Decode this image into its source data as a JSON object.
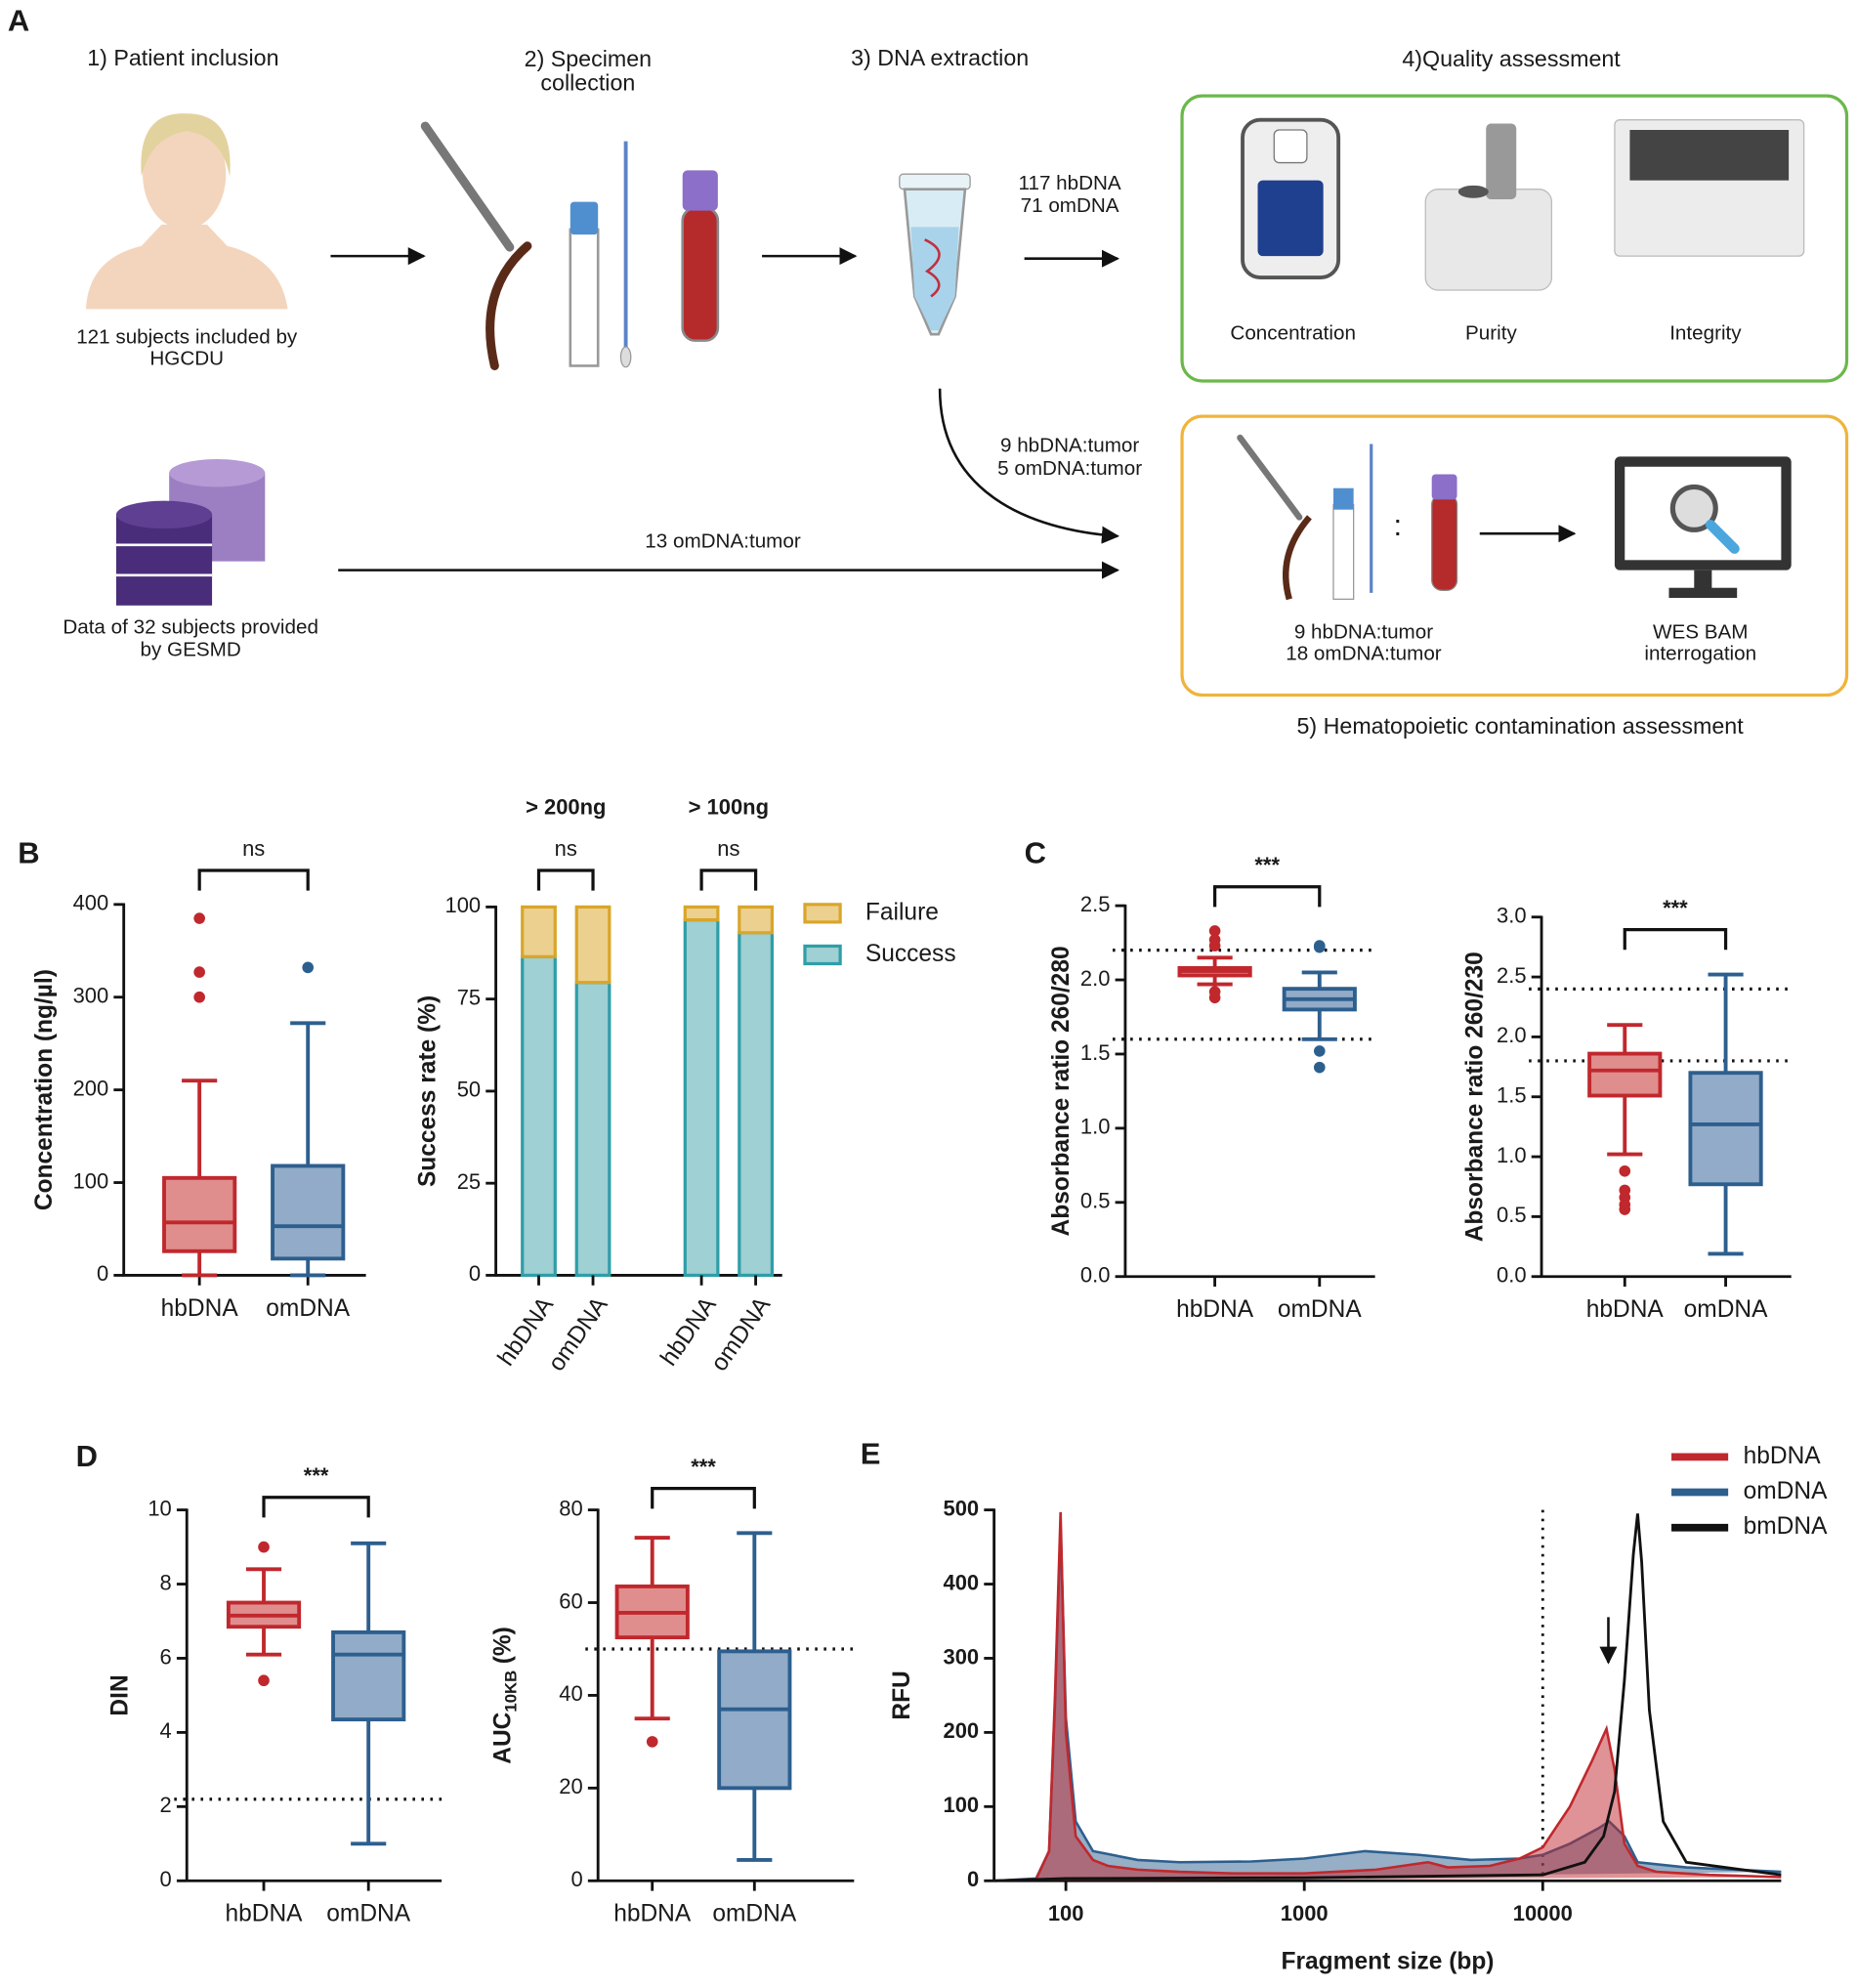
{
  "panel_a": {
    "label": "A",
    "step1": "1) Patient inclusion",
    "step2": [
      "2) Specimen",
      "collection"
    ],
    "step3": "3) DNA extraction",
    "step4": "4)Quality assessment",
    "step5": "5) Hematopoietic contamination assessment",
    "inclusion_note": [
      "121 subjects included by",
      "HGCDU"
    ],
    "gesmd_note": [
      "Data of 32 subjects provided",
      "by GESMD"
    ],
    "extraction_counts": [
      "117 hbDNA",
      "71 omDNA"
    ],
    "tumor_counts": [
      "9 hbDNA:tumor",
      "5 omDNA:tumor"
    ],
    "gesmd_count": "13 omDNA:tumor",
    "quality_items": [
      "Concentration",
      "Purity",
      "Integrity"
    ],
    "contamination_counts": [
      "9 hbDNA:tumor",
      "18 omDNA:tumor"
    ],
    "pair_separator": ":",
    "wes": [
      "WES BAM",
      "interrogation"
    ]
  },
  "chart_data": [
    {
      "type": "box",
      "panel": "B",
      "y_label": "Concentration (ng/µl)",
      "categories": [
        "hbDNA",
        "omDNA"
      ],
      "ylim": [
        0,
        400
      ],
      "yticks": [
        0,
        100,
        200,
        300,
        400
      ],
      "significance": "ns",
      "boxes": [
        {
          "color": "#c0282d",
          "fill": "#e08d8d",
          "low": 0,
          "q1": 26,
          "median": 57,
          "q3": 105,
          "high": 210,
          "outliers": [
            300,
            327,
            385
          ]
        },
        {
          "color": "#2d5f8e",
          "fill": "#91abc8",
          "low": 0,
          "q1": 18,
          "median": 53,
          "q3": 118,
          "high": 272,
          "outliers": [
            332
          ]
        }
      ]
    },
    {
      "type": "stacked_bar",
      "y_label": "Success rate (%)",
      "categories": [
        "hbDNA",
        "omDNA",
        "hbDNA",
        "omDNA"
      ],
      "groups": [
        {
          "label": "> 200ng",
          "significance": "ns"
        },
        {
          "label": "> 100ng",
          "significance": "ns"
        }
      ],
      "ylim": [
        0,
        100
      ],
      "yticks": [
        0,
        25,
        50,
        75,
        100
      ],
      "series": [
        {
          "name": "Failure",
          "color": "#d9a62a",
          "fill": "#ecd090",
          "values": [
            13.5,
            20.5,
            3.5,
            7
          ]
        },
        {
          "name": "Success",
          "color": "#2f9ea8",
          "fill": "#9fd0d3",
          "values": [
            86.5,
            79.5,
            96.5,
            93
          ]
        }
      ]
    },
    {
      "type": "box",
      "panel": "C",
      "y_label": "Absorbance ratio 260/280",
      "categories": [
        "hbDNA",
        "omDNA"
      ],
      "ylim": [
        0,
        2.5
      ],
      "yticks": [
        {
          "value": 0,
          "label": "0.0"
        },
        0.5,
        {
          "value": 1,
          "label": "1.0"
        },
        1.5,
        {
          "value": 2,
          "label": "2.0"
        },
        2.5
      ],
      "significance": "***",
      "ref_lines": [
        2.2,
        1.6
      ],
      "boxes": [
        {
          "color": "#c0282d",
          "fill": "#e08d8d",
          "low": 1.97,
          "q1": 2.03,
          "median": 2.06,
          "q3": 2.08,
          "high": 2.15,
          "outliers": [
            2.33,
            2.27,
            2.23,
            1.92,
            1.88
          ]
        },
        {
          "color": "#2d5f8e",
          "fill": "#91abc8",
          "low": 1.6,
          "q1": 1.8,
          "median": 1.87,
          "q3": 1.94,
          "high": 2.05,
          "outliers": [
            2.23,
            2.22,
            1.52,
            1.41
          ]
        }
      ]
    },
    {
      "type": "box",
      "y_label": "Absorbance ratio 260/230",
      "categories": [
        "hbDNA",
        "omDNA"
      ],
      "ylim": [
        0,
        3
      ],
      "yticks": [
        {
          "value": 0,
          "label": "0.0"
        },
        0.5,
        {
          "value": 1,
          "label": "1.0"
        },
        1.5,
        {
          "value": 2,
          "label": "2.0"
        },
        2.5,
        {
          "value": 3,
          "label": "3.0"
        }
      ],
      "significance": "***",
      "ref_lines": [
        2.4,
        1.8
      ],
      "boxes": [
        {
          "color": "#c0282d",
          "fill": "#e08d8d",
          "low": 1.02,
          "q1": 1.51,
          "median": 1.72,
          "q3": 1.86,
          "high": 2.1,
          "outliers": [
            0.88,
            0.72,
            0.66,
            0.6,
            0.56
          ]
        },
        {
          "color": "#2d5f8e",
          "fill": "#91abc8",
          "low": 0.19,
          "q1": 0.77,
          "median": 1.27,
          "q3": 1.7,
          "high": 2.52,
          "outliers": []
        }
      ]
    },
    {
      "type": "box",
      "panel": "D",
      "y_label": "DIN",
      "categories": [
        "hbDNA",
        "omDNA"
      ],
      "ylim": [
        0,
        10
      ],
      "yticks": [
        0,
        2,
        4,
        6,
        8,
        10
      ],
      "significance": "***",
      "ref_lines": [
        2.2
      ],
      "boxes": [
        {
          "color": "#c0282d",
          "fill": "#e08d8d",
          "low": 6.1,
          "q1": 6.85,
          "median": 7.15,
          "q3": 7.5,
          "high": 8.4,
          "outliers": [
            9.0,
            5.4
          ]
        },
        {
          "color": "#2d5f8e",
          "fill": "#91abc8",
          "low": 1.0,
          "q1": 4.35,
          "median": 6.1,
          "q3": 6.7,
          "high": 9.1,
          "outliers": []
        }
      ]
    },
    {
      "type": "box",
      "y_label": [
        "AUC",
        "10KB",
        "(%)"
      ],
      "categories": [
        "hbDNA",
        "omDNA"
      ],
      "ylim": [
        0,
        80
      ],
      "yticks": [
        0,
        20,
        40,
        60,
        80
      ],
      "significance": "***",
      "ref_lines": [
        50
      ],
      "boxes": [
        {
          "color": "#c0282d",
          "fill": "#e08d8d",
          "low": 35,
          "q1": 52.5,
          "median": 57.8,
          "q3": 63.5,
          "high": 74,
          "outliers": [
            30
          ]
        },
        {
          "color": "#2d5f8e",
          "fill": "#91abc8",
          "low": 4.5,
          "q1": 20,
          "median": 37,
          "q3": 49.5,
          "high": 75,
          "outliers": []
        }
      ]
    },
    {
      "type": "area",
      "panel": "E",
      "x_label": "Fragment size (bp)",
      "y_label": "RFU",
      "xlog": true,
      "xlim": [
        50,
        100000
      ],
      "xticks": [
        100,
        1000,
        10000
      ],
      "ylim": [
        0,
        500
      ],
      "yticks": [
        0,
        100,
        200,
        300,
        400,
        500
      ],
      "ref_x": [
        10000
      ],
      "legend": "top-right",
      "series": [
        {
          "name": "hbDNA",
          "color": "#c0282d",
          "fill": true,
          "x": [
            50,
            75,
            85,
            90,
            95,
            100,
            110,
            130,
            150,
            200,
            300,
            500,
            1000,
            2000,
            3300,
            4000,
            6000,
            8000,
            10000,
            13000,
            16000,
            18500,
            20000,
            22000,
            25000,
            30000,
            50000,
            100000
          ],
          "values": [
            0,
            2,
            40,
            250,
            497,
            200,
            60,
            28,
            20,
            15,
            12,
            10,
            10,
            15,
            25,
            18,
            20,
            30,
            45,
            100,
            160,
            205,
            150,
            50,
            20,
            12,
            8,
            5
          ]
        },
        {
          "name": "omDNA",
          "color": "#2d5f8e",
          "fill": true,
          "x": [
            50,
            75,
            85,
            90,
            95,
            100,
            110,
            130,
            200,
            300,
            600,
            1000,
            1800,
            3000,
            5000,
            8000,
            10000,
            13000,
            17000,
            19000,
            22000,
            25000,
            40000,
            100000
          ],
          "values": [
            0,
            3,
            40,
            240,
            480,
            220,
            80,
            40,
            28,
            25,
            26,
            30,
            40,
            35,
            28,
            30,
            35,
            50,
            70,
            80,
            60,
            25,
            18,
            12
          ]
        },
        {
          "name": "bmDNA",
          "color": "#111111",
          "fill": false,
          "x": [
            50,
            100,
            1000,
            10000,
            15000,
            18000,
            20000,
            22000,
            24000,
            25000,
            26000,
            28000,
            32000,
            40000,
            100000
          ],
          "values": [
            0,
            3,
            4,
            8,
            25,
            60,
            120,
            270,
            440,
            495,
            430,
            230,
            80,
            25,
            8
          ]
        }
      ]
    }
  ]
}
